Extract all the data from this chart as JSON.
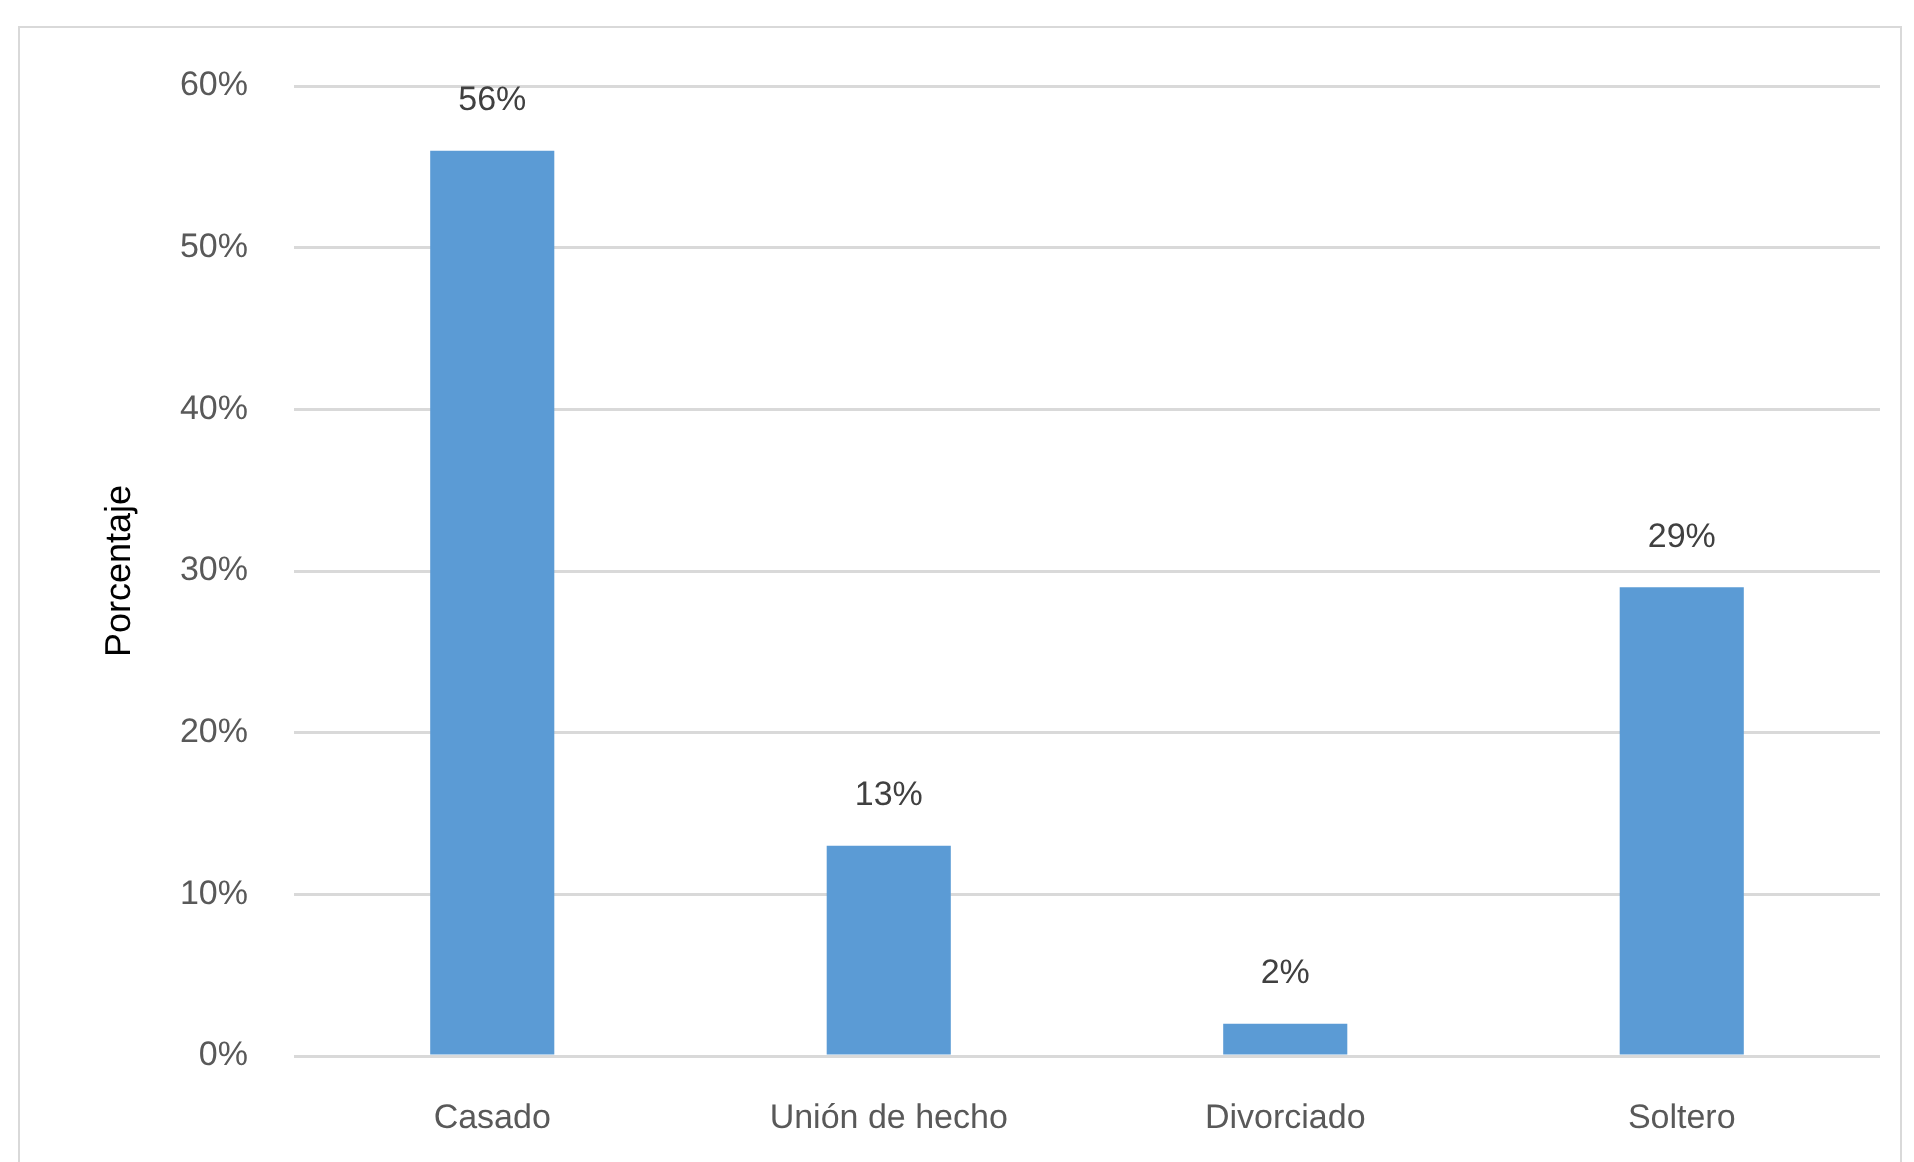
{
  "chart_data": {
    "type": "bar",
    "ylabel": "Porcentaje",
    "categories": [
      "Casado",
      "Unión de hecho",
      "Divorciado",
      "Soltero"
    ],
    "values": [
      56,
      13,
      2,
      29
    ],
    "color": "#5b9bd5",
    "value_labels": [
      "56%",
      "13%",
      "2%",
      "29%"
    ],
    "ylim": [
      0,
      60
    ],
    "yticks": [
      {
        "value": 0,
        "label": "0%"
      },
      {
        "value": 10,
        "label": "10%"
      },
      {
        "value": 20,
        "label": "20%"
      },
      {
        "value": 30,
        "label": "30%"
      },
      {
        "value": 40,
        "label": "40%"
      },
      {
        "value": 50,
        "label": "50%"
      },
      {
        "value": 60,
        "label": "60%"
      }
    ],
    "grid": "y"
  }
}
